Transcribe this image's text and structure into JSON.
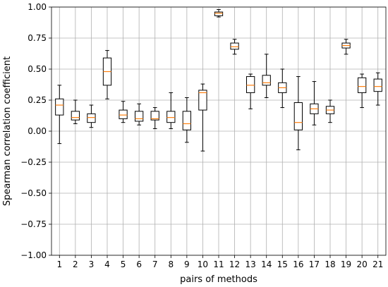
{
  "chart_data": {
    "type": "box",
    "xlabel": "pairs of methods",
    "ylabel": "Spearman correlation coefficient",
    "ylim": [
      -1.0,
      1.0
    ],
    "yticks": [
      -1.0,
      -0.75,
      -0.5,
      -0.25,
      0.0,
      0.25,
      0.5,
      0.75,
      1.0
    ],
    "ytick_labels": [
      "−1.00",
      "−0.75",
      "−0.50",
      "−0.25",
      "0.00",
      "0.25",
      "0.50",
      "0.75",
      "1.00"
    ],
    "grid": true,
    "categories": [
      "1",
      "2",
      "3",
      "4",
      "5",
      "6",
      "7",
      "8",
      "9",
      "10",
      "11",
      "12",
      "13",
      "14",
      "15",
      "16",
      "17",
      "18",
      "19",
      "20",
      "21"
    ],
    "boxes": [
      {
        "whisker_low": -0.1,
        "q1": 0.13,
        "median": 0.21,
        "q3": 0.26,
        "whisker_high": 0.37
      },
      {
        "whisker_low": 0.06,
        "q1": 0.09,
        "median": 0.11,
        "q3": 0.16,
        "whisker_high": 0.25
      },
      {
        "whisker_low": 0.03,
        "q1": 0.07,
        "median": 0.11,
        "q3": 0.14,
        "whisker_high": 0.21
      },
      {
        "whisker_low": 0.26,
        "q1": 0.37,
        "median": 0.48,
        "q3": 0.59,
        "whisker_high": 0.65
      },
      {
        "whisker_low": 0.07,
        "q1": 0.1,
        "median": 0.13,
        "q3": 0.17,
        "whisker_high": 0.24
      },
      {
        "whisker_low": 0.05,
        "q1": 0.08,
        "median": 0.1,
        "q3": 0.16,
        "whisker_high": 0.22
      },
      {
        "whisker_low": 0.02,
        "q1": 0.09,
        "median": 0.1,
        "q3": 0.16,
        "whisker_high": 0.19
      },
      {
        "whisker_low": 0.02,
        "q1": 0.07,
        "median": 0.11,
        "q3": 0.16,
        "whisker_high": 0.31
      },
      {
        "whisker_low": -0.09,
        "q1": 0.01,
        "median": 0.06,
        "q3": 0.16,
        "whisker_high": 0.27
      },
      {
        "whisker_low": -0.16,
        "q1": 0.17,
        "median": 0.31,
        "q3": 0.33,
        "whisker_high": 0.38
      },
      {
        "whisker_low": 0.92,
        "q1": 0.93,
        "median": 0.95,
        "q3": 0.96,
        "whisker_high": 0.98
      },
      {
        "whisker_low": 0.62,
        "q1": 0.66,
        "median": 0.68,
        "q3": 0.71,
        "whisker_high": 0.74
      },
      {
        "whisker_low": 0.18,
        "q1": 0.31,
        "median": 0.37,
        "q3": 0.44,
        "whisker_high": 0.46
      },
      {
        "whisker_low": 0.27,
        "q1": 0.37,
        "median": 0.39,
        "q3": 0.45,
        "whisker_high": 0.62
      },
      {
        "whisker_low": 0.19,
        "q1": 0.31,
        "median": 0.35,
        "q3": 0.39,
        "whisker_high": 0.5
      },
      {
        "whisker_low": -0.15,
        "q1": 0.01,
        "median": 0.07,
        "q3": 0.23,
        "whisker_high": 0.44
      },
      {
        "whisker_low": 0.05,
        "q1": 0.14,
        "median": 0.18,
        "q3": 0.22,
        "whisker_high": 0.4
      },
      {
        "whisker_low": 0.07,
        "q1": 0.14,
        "median": 0.17,
        "q3": 0.2,
        "whisker_high": 0.25
      },
      {
        "whisker_low": 0.62,
        "q1": 0.67,
        "median": 0.69,
        "q3": 0.71,
        "whisker_high": 0.74
      },
      {
        "whisker_low": 0.19,
        "q1": 0.31,
        "median": 0.36,
        "q3": 0.43,
        "whisker_high": 0.46
      },
      {
        "whisker_low": 0.21,
        "q1": 0.32,
        "median": 0.36,
        "q3": 0.42,
        "whisker_high": 0.47
      }
    ],
    "colors": {
      "box": "#000000",
      "median": "#ff7f0e",
      "grid": "#b0b0b0",
      "axis": "#000000"
    }
  }
}
